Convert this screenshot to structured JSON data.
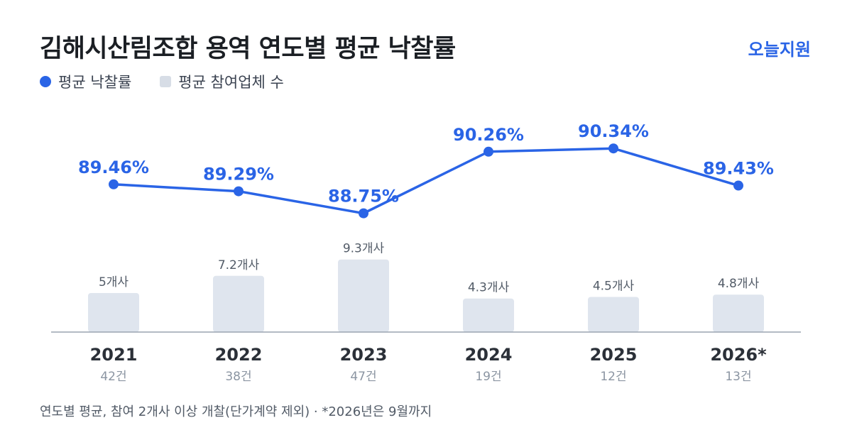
{
  "header": {
    "title": "김해시산림조합 용역 연도별 평균 낙찰률",
    "brand": "오늘지원"
  },
  "legend": {
    "rate_label": "평균 낙찰률",
    "bidders_label": "평균 참여업체 수"
  },
  "colors": {
    "accent": "#2a64e6",
    "bar": "#dfe5ee",
    "axis": "#9aa3b0",
    "year_text": "#2b3038",
    "count_text": "#8b95a2",
    "bar_label": "#525b67"
  },
  "chart_data": {
    "type": "bar",
    "categories": [
      "2021",
      "2022",
      "2023",
      "2024",
      "2025",
      "2026*"
    ],
    "category_sublabels": [
      "42건",
      "38건",
      "47건",
      "19건",
      "12건",
      "13건"
    ],
    "series": [
      {
        "name": "평균 낙찰률",
        "type": "line",
        "values": [
          89.46,
          89.29,
          88.75,
          90.26,
          90.34,
          89.43
        ],
        "labels": [
          "89.46%",
          "89.29%",
          "88.75%",
          "90.26%",
          "90.34%",
          "89.43%"
        ]
      },
      {
        "name": "평균 참여업체 수",
        "type": "bar",
        "values": [
          5,
          7.2,
          9.3,
          4.3,
          4.5,
          4.8
        ],
        "labels": [
          "5개사",
          "7.2개사",
          "9.3개사",
          "4.3개사",
          "4.5개사",
          "4.8개사"
        ]
      }
    ],
    "y_rate_range": [
      88.5,
      90.5
    ],
    "y_bar_range": [
      0,
      10
    ]
  },
  "footer": {
    "note": "연도별 평균, 참여 2개사 이상 개찰(단가계약 제외) · *2026년은 9월까지"
  }
}
